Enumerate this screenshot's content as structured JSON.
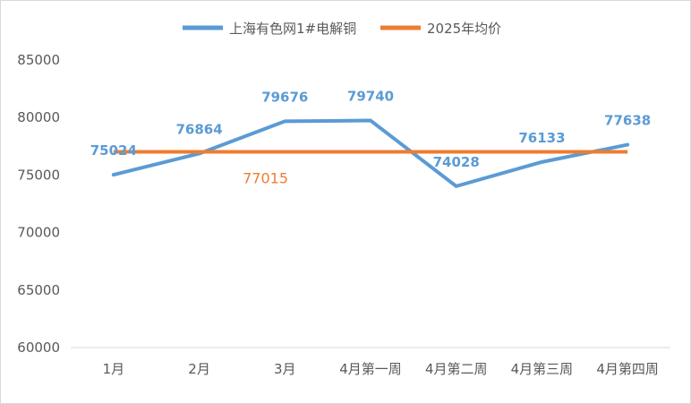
{
  "chart_data": {
    "type": "line",
    "categories": [
      "1月",
      "2月",
      "3月",
      "4月第一周",
      "4月第二周",
      "4月第三周",
      "4月第四周"
    ],
    "series": [
      {
        "name": "上海有色网1#电解铜",
        "color": "#5b9bd5",
        "values": [
          75024,
          76864,
          79676,
          79740,
          74028,
          76133,
          77638
        ],
        "data_labels": [
          "75024",
          "76864",
          "79676",
          "79740",
          "74028",
          "76133",
          "77638"
        ]
      },
      {
        "name": "2025年均价",
        "color": "#ed7d31",
        "values": [
          77015,
          77015,
          77015,
          77015,
          77015,
          77015,
          77015
        ],
        "data_label": "77015"
      }
    ],
    "ylim": [
      60000,
      85000
    ],
    "yticks": [
      60000,
      65000,
      70000,
      75000,
      80000,
      85000
    ],
    "ytick_labels": [
      "60000",
      "65000",
      "70000",
      "75000",
      "80000",
      "85000"
    ],
    "legend_position": "top-center",
    "vertical_drop_lines": true
  }
}
